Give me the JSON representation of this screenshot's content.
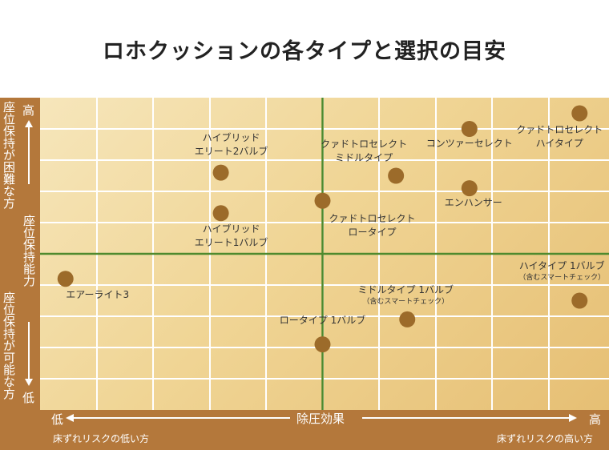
{
  "title": "ロホクッションの各タイプと選択の目安",
  "axes": {
    "y_top": "高",
    "y_bottom": "低",
    "y_upper_desc": "座位保持が困難な方",
    "y_middle": "座位保持能力",
    "y_lower_desc": "座位保持が可能な方",
    "x_left": "低",
    "x_right": "高",
    "x_center": "除圧効果",
    "x_left_desc": "床ずれリスクの低い方",
    "x_right_desc": "床ずれリスクの高い方"
  },
  "colors": {
    "frame": "#b4783b",
    "point": "#9c6b2a",
    "grid": "#ffffff",
    "quadrant_line": "#4f8a2e"
  },
  "chart_data": {
    "type": "scatter",
    "title": "ロホクッションの各タイプと選択の目安",
    "xlabel": "除圧効果",
    "ylabel": "座位保持能力",
    "xlim": [
      0,
      10
    ],
    "ylim": [
      0,
      10
    ],
    "grid": true,
    "points": [
      {
        "name": "エアーライト3",
        "sub": "",
        "x": 0.45,
        "y": 4.2
      },
      {
        "name": "ハイブリッド エリート2バルブ",
        "sub": "",
        "x": 3.2,
        "y": 7.6
      },
      {
        "name": "ハイブリッド エリート1バルブ",
        "sub": "",
        "x": 3.2,
        "y": 6.3
      },
      {
        "name": "クァドトロセレクト ロータイプ",
        "sub": "",
        "x": 5.0,
        "y": 6.7
      },
      {
        "name": "クァドトロセレクト ミドルタイプ",
        "sub": "",
        "x": 6.3,
        "y": 7.5
      },
      {
        "name": "コンツァーセレクト",
        "sub": "",
        "x": 7.6,
        "y": 9.0
      },
      {
        "name": "エンハンサー",
        "sub": "",
        "x": 7.6,
        "y": 7.1
      },
      {
        "name": "クァドトロセレクト ハイタイプ",
        "sub": "",
        "x": 9.55,
        "y": 9.5
      },
      {
        "name": "ハイタイプ 1バルブ",
        "sub": "（含むスマートチェック）",
        "x": 9.55,
        "y": 3.5
      },
      {
        "name": "ミドルタイプ 1バルブ",
        "sub": "（含むスマートチェック）",
        "x": 6.5,
        "y": 2.9
      },
      {
        "name": "ロータイプ 1バルブ",
        "sub": "",
        "x": 5.0,
        "y": 2.1
      }
    ]
  }
}
